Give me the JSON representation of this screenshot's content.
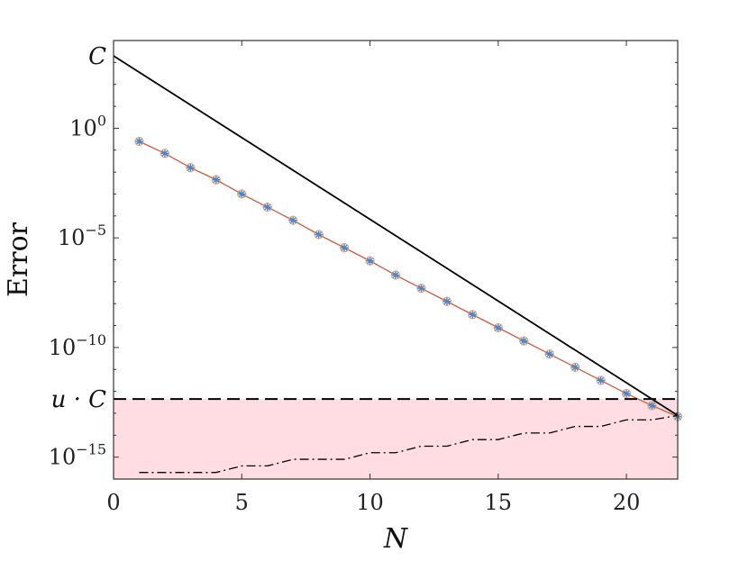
{
  "chart_data": {
    "type": "line",
    "xlabel": "N",
    "ylabel": "Error",
    "xlim": [
      0,
      22
    ],
    "ylim_log10": [
      -16,
      4
    ],
    "y_scale": "log",
    "grid": false,
    "legend": "none",
    "x_ticks": [
      0,
      5,
      10,
      15,
      20
    ],
    "x_tick_labels": [
      "0",
      "5",
      "10",
      "15",
      "20"
    ],
    "y_ticks_log10": [
      0,
      -5,
      -10,
      -15
    ],
    "y_tick_labels": [
      {
        "base": "10",
        "exp": "0"
      },
      {
        "base": "10",
        "exp": "−5"
      },
      {
        "base": "10",
        "exp": "−10"
      },
      {
        "base": "10",
        "exp": "−15"
      }
    ],
    "reference_labels": [
      {
        "text": "C",
        "log10": 3.3
      },
      {
        "text": "u · C",
        "log10": -12.35
      }
    ],
    "series": [
      {
        "style": "solid",
        "color": "#cc5a3c",
        "marker": "asterisk",
        "marker_color": "#4a86c8",
        "x": [
          1,
          2,
          3,
          4,
          5,
          6,
          7,
          8,
          9,
          10,
          11,
          12,
          13,
          14,
          15,
          16,
          17,
          18,
          19,
          20,
          21,
          22
        ],
        "log10_y": [
          -0.6,
          -1.15,
          -1.8,
          -2.35,
          -3.0,
          -3.6,
          -4.2,
          -4.85,
          -5.45,
          -6.05,
          -6.7,
          -7.3,
          -7.9,
          -8.5,
          -9.1,
          -9.7,
          -10.3,
          -10.9,
          -11.5,
          -12.1,
          -12.65,
          -13.15
        ]
      },
      {
        "style": "solid",
        "color": "#000000",
        "marker": "none",
        "x": [
          0,
          22
        ],
        "log10_y": [
          3.3,
          -13.1
        ]
      },
      {
        "style": "dashdot",
        "color": "#000000",
        "marker": "none",
        "x": [
          1,
          2,
          3,
          4,
          5,
          6,
          7,
          8,
          9,
          10,
          11,
          12,
          13,
          14,
          15,
          16,
          17,
          18,
          19,
          20,
          21,
          22
        ],
        "log10_y": [
          -15.7,
          -15.7,
          -15.7,
          -15.7,
          -15.4,
          -15.4,
          -15.1,
          -15.1,
          -15.1,
          -14.8,
          -14.8,
          -14.5,
          -14.5,
          -14.2,
          -14.2,
          -13.9,
          -13.9,
          -13.6,
          -13.6,
          -13.3,
          -13.3,
          -13.1
        ]
      }
    ],
    "reference_line": {
      "style": "dashed",
      "color": "#000000",
      "log10": -12.35
    },
    "shaded_region": {
      "color": "#ffdde2",
      "from_log10": -16,
      "to_log10": -12.35
    }
  }
}
